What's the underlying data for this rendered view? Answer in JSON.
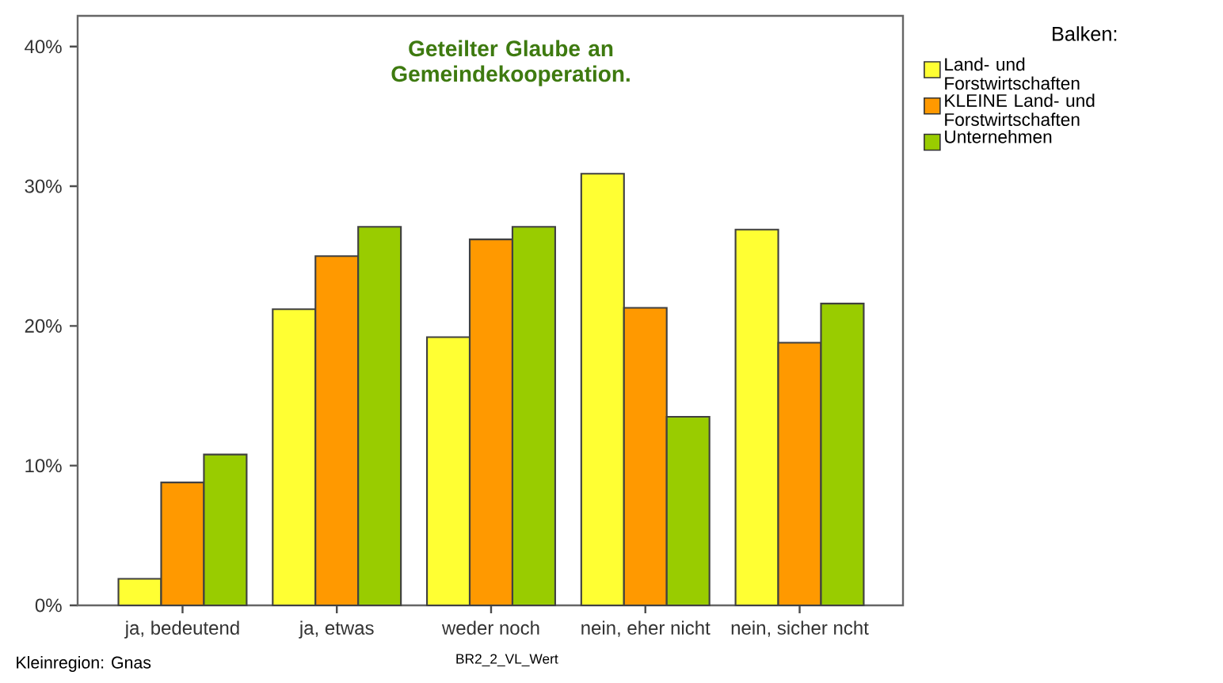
{
  "chart_data": {
    "type": "bar",
    "title": "Geteilter Glaube an Gemeindekooperation.",
    "xlabel": "BR2_2_VL_Wert",
    "legend_title": "Balken:",
    "categories": [
      "ja, bedeutend",
      "ja, etwas",
      "weder noch",
      "nein, eher nicht",
      "nein, sicher ncht"
    ],
    "series": [
      {
        "name": "Land- und Forstwirtschaften",
        "color": "#ffff33",
        "values": [
          1.9,
          21.2,
          19.2,
          30.9,
          26.9
        ]
      },
      {
        "name": "KLEINE Land- und Forstwirtschaften",
        "color": "#ff9900",
        "values": [
          8.8,
          25.0,
          26.2,
          21.3,
          18.8
        ]
      },
      {
        "name": "Unternehmen",
        "color": "#99cc00",
        "values": [
          10.8,
          27.1,
          27.1,
          13.5,
          21.6
        ]
      }
    ],
    "ylim": [
      0,
      42.2
    ],
    "yticks": [
      {
        "value": 0,
        "label": "0%"
      },
      {
        "value": 10,
        "label": "10%"
      },
      {
        "value": 20,
        "label": "20%"
      },
      {
        "value": 30,
        "label": "30%"
      },
      {
        "value": 40,
        "label": "40%"
      }
    ],
    "grid": false,
    "legend": "top right",
    "annotations": [
      "Kleinregion: Gnas"
    ]
  }
}
